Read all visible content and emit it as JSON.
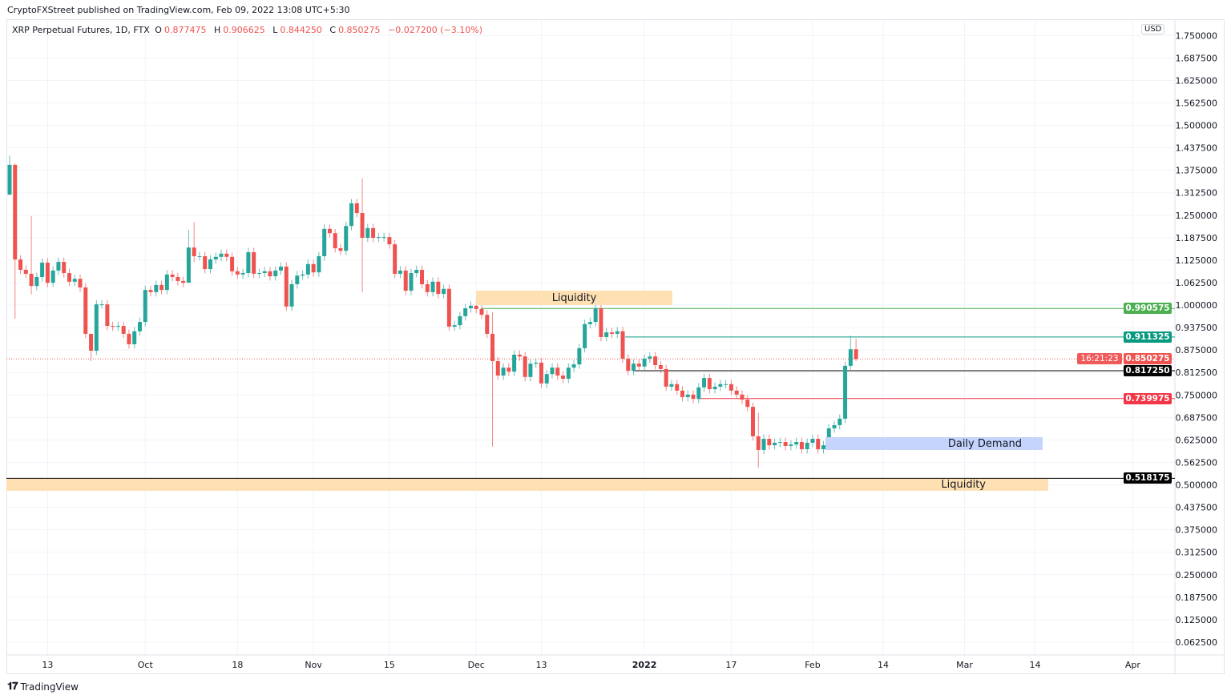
{
  "published": "CryptoFXStreet published on TradingView.com, Feb 09, 2022 13:08 UTC+5:30",
  "legend": {
    "symbol": "XRP Perpetual Futures, 1D, FTX",
    "o_label": "O",
    "o": "0.877475",
    "h_label": "H",
    "h": "0.906625",
    "l_label": "L",
    "l": "0.844250",
    "c_label": "C",
    "c": "0.850275",
    "change": "−0.027200 (−3.10%)"
  },
  "currency": "USD",
  "footer": {
    "brand": "TradingView",
    "logo_icon": "tradingview-logo-icon"
  },
  "colors": {
    "up": "#26a69a",
    "down": "#ef5350",
    "liquidity": "#ffe0b2",
    "demand": "#c5d4fb"
  },
  "chart_data": {
    "type": "candlestick",
    "title": "",
    "interval": "1D",
    "grid": true,
    "ylim": [
      0.03,
      1.77
    ],
    "y_ticks": [
      "1.750000",
      "1.687500",
      "1.625000",
      "1.562500",
      "1.500000",
      "1.437500",
      "1.375000",
      "1.312500",
      "1.250000",
      "1.187500",
      "1.125000",
      "1.062500",
      "1.000000",
      "0.937500",
      "0.875000",
      "0.812500",
      "0.750000",
      "0.687500",
      "0.625000",
      "0.562500",
      "0.500000",
      "0.437500",
      "0.375000",
      "0.312500",
      "0.250000",
      "0.187500",
      "0.125000",
      "0.062500"
    ],
    "x_ticks": [
      {
        "label": "13",
        "date": "2021-09-13"
      },
      {
        "label": "Oct",
        "date": "2021-10-01"
      },
      {
        "label": "18",
        "date": "2021-10-18"
      },
      {
        "label": "Nov",
        "date": "2021-11-01"
      },
      {
        "label": "15",
        "date": "2021-11-15"
      },
      {
        "label": "Dec",
        "date": "2021-12-01"
      },
      {
        "label": "13",
        "date": "2021-12-13"
      },
      {
        "label": "2022",
        "date": "2022-01-01",
        "bold": true
      },
      {
        "label": "17",
        "date": "2022-01-17"
      },
      {
        "label": "Feb",
        "date": "2022-02-01"
      },
      {
        "label": "14",
        "date": "2022-02-14"
      },
      {
        "label": "Mar",
        "date": "2022-03-01"
      },
      {
        "label": "14",
        "date": "2022-03-14"
      },
      {
        "label": "Apr",
        "date": "2022-04-01"
      }
    ],
    "first_open": 1.307,
    "closes": [
      1.39,
      1.127,
      1.098,
      1.087,
      1.053,
      1.078,
      1.118,
      1.062,
      1.096,
      1.12,
      1.089,
      1.065,
      1.073,
      1.049,
      0.92,
      0.873,
      1.002,
      1.002,
      0.942,
      0.94,
      0.942,
      0.92,
      0.891,
      0.927,
      0.953,
      1.042,
      1.036,
      1.056,
      1.042,
      1.085,
      1.078,
      1.067,
      1.062,
      1.16,
      1.136,
      1.136,
      1.1,
      1.127,
      1.134,
      1.143,
      1.134,
      1.094,
      1.085,
      1.089,
      1.147,
      1.087,
      1.089,
      1.094,
      1.08,
      1.096,
      1.107,
      0.996,
      1.058,
      1.082,
      1.085,
      1.114,
      1.091,
      1.136,
      1.212,
      1.2,
      1.158,
      1.151,
      1.22,
      1.283,
      1.256,
      1.187,
      1.214,
      1.187,
      1.189,
      1.189,
      1.169,
      1.087,
      1.096,
      1.04,
      1.089,
      1.098,
      1.058,
      1.036,
      1.065,
      1.031,
      1.045,
      0.94,
      0.944,
      0.969,
      0.991,
      0.998,
      0.989,
      0.973,
      0.92,
      0.844,
      0.804,
      0.826,
      0.815,
      0.862,
      0.857,
      0.8,
      0.837,
      0.84,
      0.782,
      0.808,
      0.826,
      0.804,
      0.795,
      0.826,
      0.835,
      0.88,
      0.947,
      0.953,
      0.991,
      0.911,
      0.924,
      0.92,
      0.927,
      0.851,
      0.817,
      0.837,
      0.829,
      0.851,
      0.857,
      0.833,
      0.822,
      0.773,
      0.78,
      0.762,
      0.744,
      0.751,
      0.739,
      0.771,
      0.797,
      0.766,
      0.773,
      0.78,
      0.78,
      0.762,
      0.751,
      0.737,
      0.717,
      0.635,
      0.597,
      0.628,
      0.61,
      0.617,
      0.619,
      0.608,
      0.612,
      0.619,
      0.599,
      0.617,
      0.628,
      0.599,
      0.61,
      0.657,
      0.666,
      0.684,
      0.831,
      0.877,
      0.85
    ],
    "notable_wicks": [
      {
        "i": 0,
        "high": 1.416,
        "low": 1.307
      },
      {
        "i": 1,
        "high": 1.394,
        "low": 0.962
      },
      {
        "i": 4,
        "high": 1.247,
        "low": 1.03
      },
      {
        "i": 15,
        "high": 0.904,
        "low": 0.844
      },
      {
        "i": 33,
        "high": 1.209,
        "low": 1.12
      },
      {
        "i": 34,
        "high": 1.231,
        "low": 1.12
      },
      {
        "i": 65,
        "high": 1.352,
        "low": 1.036
      },
      {
        "i": 89,
        "high": 0.98,
        "low": 0.606
      },
      {
        "i": 108,
        "high": 1.02,
        "low": 0.94
      },
      {
        "i": 138,
        "high": 0.7,
        "low": 0.548
      },
      {
        "i": 155,
        "high": 0.915,
        "low": 0.82
      },
      {
        "i": 156,
        "high": 0.9066,
        "low": 0.8443
      }
    ],
    "levels": [
      {
        "price": 0.990575,
        "label": "0.990575",
        "color": "#4caf50"
      },
      {
        "price": 0.911325,
        "label": "0.911325",
        "color": "#089981"
      },
      {
        "price": 0.850275,
        "label": "0.850275",
        "sub": "16:21:23",
        "color": "#ef5350",
        "dotted": true
      },
      {
        "price": 0.81725,
        "label": "0.817250",
        "color": "#000000"
      },
      {
        "price": 0.739975,
        "label": "0.739975",
        "color": "#f23645"
      },
      {
        "price": 0.518175,
        "label": "0.518175",
        "color": "#000000"
      }
    ],
    "zones": [
      {
        "label": "Liquidity",
        "top": 1.04,
        "bottom": 0.998
      },
      {
        "label": "Daily Demand",
        "top": 0.633,
        "bottom": 0.597
      },
      {
        "label": "Liquidity",
        "top": 0.516,
        "bottom": 0.483
      }
    ]
  }
}
